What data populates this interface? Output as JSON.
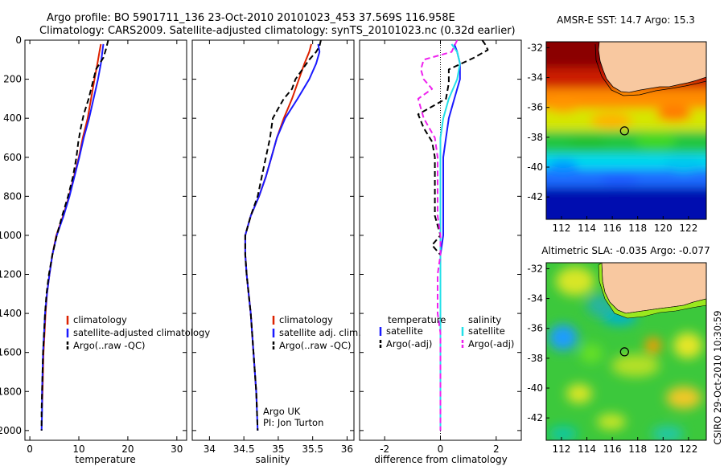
{
  "header": {
    "line1": "Argo profile: BO 5901711_136 23-Oct-2010 20101023_453 37.569S 116.958E",
    "line2": "Climatology: CARS2009. Satellite-adjusted climatology: synTS_20101023.nc (0.32d earlier)"
  },
  "credit": {
    "org": "Argo UK",
    "pi": "PI: Jon Turton",
    "stamp": "CSIRO 29-Oct-2010 10:30:59"
  },
  "colors": {
    "climatology": "#dd2200",
    "satellite": "#1a1aff",
    "argo": "#000000",
    "satellite_sal": "#22e0e8",
    "argo_sal": "#ee22ee",
    "land": "#f8c8a0"
  },
  "chart_data": [
    {
      "type": "line",
      "id": "temperature",
      "xlabel": "temperature",
      "ylabel": "",
      "xlim": [
        -1,
        32
      ],
      "ylim": [
        2050,
        0
      ],
      "xticks": [
        0,
        10,
        20,
        30
      ],
      "yticks": [
        0,
        200,
        400,
        600,
        800,
        1000,
        1200,
        1400,
        1600,
        1800,
        2000
      ],
      "legend": {
        "placement": "lower-right",
        "entries": [
          "climatology",
          "satellite-adjusted climatology",
          "Argo(..raw -QC)"
        ]
      },
      "series": [
        {
          "name": "climatology",
          "style": "solid",
          "color_key": "climatology",
          "points": [
            [
              14.5,
              20
            ],
            [
              14.2,
              60
            ],
            [
              13.8,
              120
            ],
            [
              13.2,
              200
            ],
            [
              12.5,
              300
            ],
            [
              11.8,
              400
            ],
            [
              10.8,
              500
            ],
            [
              10.0,
              600
            ],
            [
              9.0,
              700
            ],
            [
              8.0,
              800
            ],
            [
              6.8,
              900
            ],
            [
              5.4,
              1000
            ],
            [
              4.6,
              1100
            ],
            [
              4.0,
              1200
            ],
            [
              3.5,
              1300
            ],
            [
              3.2,
              1400
            ],
            [
              3.0,
              1500
            ],
            [
              2.8,
              1600
            ],
            [
              2.7,
              1700
            ],
            [
              2.6,
              1800
            ],
            [
              2.5,
              1880
            ]
          ]
        },
        {
          "name": "satellite-adjusted climatology",
          "style": "solid",
          "color_key": "satellite",
          "points": [
            [
              15.0,
              20
            ],
            [
              14.8,
              60
            ],
            [
              14.5,
              120
            ],
            [
              13.9,
              200
            ],
            [
              13.0,
              300
            ],
            [
              12.1,
              400
            ],
            [
              11.0,
              500
            ],
            [
              10.1,
              600
            ],
            [
              9.1,
              700
            ],
            [
              8.1,
              800
            ],
            [
              6.9,
              900
            ],
            [
              5.5,
              1000
            ],
            [
              4.6,
              1100
            ],
            [
              4.0,
              1200
            ],
            [
              3.5,
              1300
            ],
            [
              3.1,
              1400
            ],
            [
              2.9,
              1500
            ],
            [
              2.7,
              1600
            ],
            [
              2.6,
              1700
            ],
            [
              2.5,
              1800
            ],
            [
              2.5,
              1900
            ],
            [
              2.4,
              2000
            ]
          ]
        },
        {
          "name": "Argo(..raw -QC)",
          "style": "dashed",
          "color_key": "argo",
          "points": [
            [
              16.0,
              0
            ],
            [
              15.8,
              20
            ],
            [
              15.5,
              50
            ],
            [
              15.0,
              90
            ],
            [
              13.5,
              150
            ],
            [
              12.8,
              220
            ],
            [
              12.0,
              300
            ],
            [
              11.0,
              380
            ],
            [
              10.4,
              450
            ],
            [
              9.9,
              520
            ],
            [
              9.5,
              600
            ],
            [
              8.8,
              700
            ],
            [
              7.8,
              800
            ],
            [
              6.6,
              900
            ],
            [
              5.5,
              1000
            ],
            [
              4.6,
              1100
            ],
            [
              3.9,
              1200
            ],
            [
              3.4,
              1300
            ],
            [
              3.1,
              1400
            ],
            [
              2.9,
              1500
            ],
            [
              2.7,
              1600
            ],
            [
              2.6,
              1700
            ],
            [
              2.5,
              1800
            ],
            [
              2.4,
              1900
            ],
            [
              2.4,
              2000
            ]
          ]
        }
      ]
    },
    {
      "type": "line",
      "id": "salinity",
      "xlabel": "salinity",
      "ylabel": "",
      "xlim": [
        33.75,
        36.1
      ],
      "ylim": [
        2050,
        0
      ],
      "xticks": [
        34,
        34.5,
        35,
        35.5,
        36
      ],
      "xticklabels": [
        "34",
        "34.5",
        "35",
        "35.5",
        "36"
      ],
      "legend": {
        "placement": "lower-right",
        "entries": [
          "climatology",
          "satellite adj. clim.",
          "Argo(..raw -QC)"
        ]
      },
      "series": [
        {
          "name": "climatology",
          "style": "solid",
          "color_key": "climatology",
          "points": [
            [
              35.48,
              20
            ],
            [
              35.45,
              60
            ],
            [
              35.38,
              120
            ],
            [
              35.3,
              200
            ],
            [
              35.2,
              300
            ],
            [
              35.08,
              400
            ],
            [
              34.98,
              500
            ],
            [
              34.9,
              600
            ],
            [
              34.82,
              700
            ],
            [
              34.72,
              800
            ],
            [
              34.6,
              900
            ],
            [
              34.52,
              1000
            ],
            [
              34.52,
              1100
            ],
            [
              34.54,
              1200
            ],
            [
              34.57,
              1300
            ],
            [
              34.6,
              1400
            ],
            [
              34.62,
              1500
            ],
            [
              34.64,
              1600
            ],
            [
              34.66,
              1700
            ],
            [
              34.68,
              1800
            ],
            [
              34.69,
              1880
            ]
          ]
        },
        {
          "name": "satellite adj. clim.",
          "style": "solid",
          "color_key": "satellite",
          "points": [
            [
              35.58,
              20
            ],
            [
              35.6,
              60
            ],
            [
              35.55,
              120
            ],
            [
              35.45,
              200
            ],
            [
              35.28,
              300
            ],
            [
              35.1,
              400
            ],
            [
              34.98,
              500
            ],
            [
              34.9,
              600
            ],
            [
              34.82,
              700
            ],
            [
              34.72,
              800
            ],
            [
              34.6,
              900
            ],
            [
              34.52,
              1000
            ],
            [
              34.52,
              1100
            ],
            [
              34.54,
              1200
            ],
            [
              34.57,
              1300
            ],
            [
              34.6,
              1400
            ],
            [
              34.62,
              1500
            ],
            [
              34.64,
              1600
            ],
            [
              34.66,
              1700
            ],
            [
              34.68,
              1800
            ],
            [
              34.69,
              1900
            ],
            [
              34.7,
              2000
            ]
          ]
        },
        {
          "name": "Argo(..raw -QC)",
          "style": "dashed",
          "color_key": "argo",
          "points": [
            [
              35.62,
              0
            ],
            [
              35.6,
              30
            ],
            [
              35.55,
              60
            ],
            [
              35.45,
              100
            ],
            [
              35.35,
              150
            ],
            [
              35.25,
              200
            ],
            [
              35.2,
              250
            ],
            [
              35.08,
              300
            ],
            [
              35.0,
              350
            ],
            [
              34.92,
              400
            ],
            [
              34.88,
              500
            ],
            [
              34.82,
              600
            ],
            [
              34.76,
              700
            ],
            [
              34.7,
              800
            ],
            [
              34.6,
              900
            ],
            [
              34.52,
              1000
            ],
            [
              34.52,
              1100
            ],
            [
              34.54,
              1200
            ],
            [
              34.57,
              1300
            ],
            [
              34.6,
              1400
            ],
            [
              34.62,
              1500
            ],
            [
              34.64,
              1600
            ],
            [
              34.66,
              1700
            ],
            [
              34.68,
              1800
            ],
            [
              34.69,
              1900
            ],
            [
              34.7,
              2000
            ]
          ]
        }
      ]
    },
    {
      "type": "line",
      "id": "difference",
      "xlabel": "difference from climatology",
      "ylabel": "",
      "xlim": [
        -2.9,
        2.9
      ],
      "ylim": [
        2050,
        0
      ],
      "xticks": [
        -2,
        0,
        2
      ],
      "legend": {
        "placement": "lower-center",
        "temperature_title": "temperature",
        "salinity_title": "salinity",
        "entries": [
          "satellite",
          "Argo(-adj)",
          "satellite",
          "Argo(-adj)"
        ]
      },
      "series": [
        {
          "name": "satellite",
          "group": "temperature",
          "style": "solid",
          "color_key": "satellite",
          "points": [
            [
              0.5,
              20
            ],
            [
              0.6,
              60
            ],
            [
              0.7,
              120
            ],
            [
              0.7,
              200
            ],
            [
              0.5,
              300
            ],
            [
              0.3,
              400
            ],
            [
              0.2,
              500
            ],
            [
              0.1,
              600
            ],
            [
              0.1,
              700
            ],
            [
              0.1,
              800
            ],
            [
              0.1,
              900
            ],
            [
              0.1,
              1000
            ],
            [
              0.0,
              1100
            ],
            [
              0.0,
              1200
            ],
            [
              0.0,
              1300
            ],
            [
              0.0,
              2000
            ]
          ]
        },
        {
          "name": "Argo(-adj)",
          "group": "temperature",
          "style": "dashed",
          "color_key": "argo",
          "points": [
            [
              1.5,
              0
            ],
            [
              1.6,
              20
            ],
            [
              1.7,
              50
            ],
            [
              1.2,
              90
            ],
            [
              0.3,
              150
            ],
            [
              0.3,
              220
            ],
            [
              0.2,
              300
            ],
            [
              -0.8,
              380
            ],
            [
              -0.6,
              450
            ],
            [
              -0.3,
              520
            ],
            [
              -0.2,
              600
            ],
            [
              -0.2,
              700
            ],
            [
              -0.2,
              800
            ],
            [
              -0.2,
              900
            ],
            [
              0.0,
              1000
            ],
            [
              -0.3,
              1050
            ],
            [
              0.0,
              1100
            ],
            [
              0.0,
              1200
            ],
            [
              0.0,
              1300
            ],
            [
              0.0,
              2000
            ]
          ]
        },
        {
          "name": "satellite",
          "group": "salinity",
          "style": "solid",
          "color_key": "satellite_sal",
          "points": [
            [
              0.4,
              20
            ],
            [
              0.6,
              60
            ],
            [
              0.7,
              120
            ],
            [
              0.6,
              200
            ],
            [
              0.3,
              300
            ],
            [
              0.1,
              400
            ],
            [
              0.0,
              500
            ],
            [
              0.0,
              600
            ],
            [
              0.0,
              700
            ],
            [
              0.0,
              800
            ],
            [
              0.0,
              900
            ],
            [
              0.0,
              1000
            ],
            [
              0.0,
              2000
            ]
          ]
        },
        {
          "name": "Argo(-adj)",
          "group": "salinity",
          "style": "dashed",
          "color_key": "argo_sal",
          "points": [
            [
              0.6,
              0
            ],
            [
              0.5,
              30
            ],
            [
              0.4,
              60
            ],
            [
              -0.6,
              100
            ],
            [
              -0.7,
              150
            ],
            [
              -0.6,
              200
            ],
            [
              -0.3,
              250
            ],
            [
              -0.8,
              300
            ],
            [
              -0.6,
              400
            ],
            [
              -0.2,
              500
            ],
            [
              -0.1,
              600
            ],
            [
              -0.1,
              700
            ],
            [
              -0.1,
              800
            ],
            [
              -0.1,
              900
            ],
            [
              0.0,
              1000
            ],
            [
              0.0,
              1100
            ],
            [
              -0.1,
              1200
            ],
            [
              -0.1,
              1300
            ],
            [
              -0.1,
              1400
            ],
            [
              0.0,
              1500
            ],
            [
              0.0,
              2000
            ]
          ]
        }
      ]
    },
    {
      "type": "heatmap",
      "id": "sst-map",
      "title": "AMSR-E SST: 14.7 Argo: 15.3",
      "xlim": [
        110.8,
        123.4
      ],
      "ylim": [
        -43.5,
        -31.6
      ],
      "xticks": [
        112,
        114,
        116,
        118,
        120,
        122
      ],
      "yticks": [
        -32,
        -34,
        -36,
        -38,
        -40,
        -42
      ],
      "marker": {
        "lon": 116.958,
        "lat": -37.569
      },
      "colormap": "jet"
    },
    {
      "type": "heatmap",
      "id": "sla-map",
      "title": "Altimetric SLA: -0.035 Argo: -0.077",
      "xlim": [
        110.8,
        123.4
      ],
      "ylim": [
        -43.5,
        -31.6
      ],
      "xticks": [
        112,
        114,
        116,
        118,
        120,
        122
      ],
      "yticks": [
        -32,
        -34,
        -36,
        -38,
        -40,
        -42
      ],
      "marker": {
        "lon": 116.958,
        "lat": -37.569
      },
      "colormap": "jet"
    }
  ]
}
